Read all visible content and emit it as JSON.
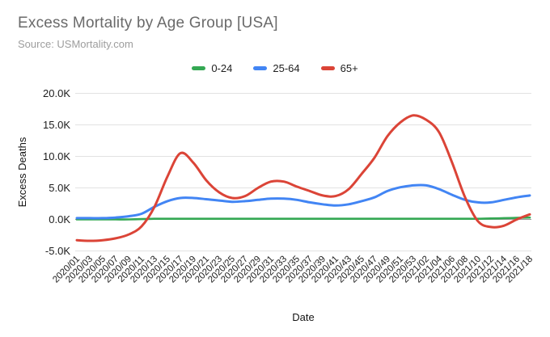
{
  "chart_data": {
    "type": "line",
    "title": "Excess Mortality by Age Group [USA]",
    "subtitle": "Source: USMortality.com",
    "xlabel": "Date",
    "ylabel": "Excess Deaths",
    "ylim": [
      -5000,
      20000
    ],
    "yticks": [
      20000,
      15000,
      10000,
      5000,
      0,
      -5000
    ],
    "ytick_labels": [
      "20.0K",
      "15.0K",
      "10.0K",
      "5.0K",
      "0.0K",
      "-5.0K"
    ],
    "grid": true,
    "legend_position": "top-center",
    "categories": [
      "2020/01",
      "2020/03",
      "2020/05",
      "2020/07",
      "2020/09",
      "2020/11",
      "2020/13",
      "2020/15",
      "2020/17",
      "2020/19",
      "2020/21",
      "2020/23",
      "2020/25",
      "2020/27",
      "2020/29",
      "2020/31",
      "2020/33",
      "2020/35",
      "2020/37",
      "2020/39",
      "2020/41",
      "2020/43",
      "2020/45",
      "2020/47",
      "2020/49",
      "2020/51",
      "2020/53",
      "2021/02",
      "2021/04",
      "2021/06",
      "2021/08",
      "2021/10",
      "2021/12",
      "2021/14",
      "2021/16",
      "2021/18"
    ],
    "series": [
      {
        "name": "0-24",
        "color": "#34a853",
        "values": [
          0,
          0,
          0,
          0,
          0,
          50,
          100,
          100,
          100,
          100,
          100,
          100,
          100,
          100,
          100,
          100,
          100,
          100,
          100,
          100,
          100,
          100,
          100,
          100,
          100,
          100,
          100,
          100,
          100,
          100,
          100,
          100,
          150,
          200,
          250,
          300
        ]
      },
      {
        "name": "25-64",
        "color": "#4285f4",
        "values": [
          200,
          200,
          200,
          300,
          500,
          900,
          2000,
          2900,
          3400,
          3400,
          3200,
          3000,
          2800,
          2900,
          3100,
          3300,
          3300,
          3100,
          2700,
          2400,
          2200,
          2400,
          2900,
          3500,
          4500,
          5100,
          5400,
          5400,
          4800,
          3900,
          3100,
          2700,
          2700,
          3100,
          3500,
          3800
        ]
      },
      {
        "name": "65+",
        "color": "#db4437",
        "values": [
          -3300,
          -3400,
          -3300,
          -3000,
          -2400,
          -1100,
          2000,
          6800,
          10500,
          9000,
          6200,
          4300,
          3400,
          3700,
          5000,
          6000,
          6000,
          5200,
          4500,
          3800,
          3700,
          4800,
          7200,
          9800,
          13200,
          15400,
          16500,
          15800,
          13800,
          9000,
          3500,
          -300,
          -1200,
          -1000,
          0,
          800
        ]
      }
    ],
    "colors": {
      "gridline": "#e2e2e2",
      "zero_baseline": "#999999",
      "title_text": "#6a6a6a",
      "source_text": "#9d9d9d",
      "tick_text": "#1c1c1c"
    }
  }
}
